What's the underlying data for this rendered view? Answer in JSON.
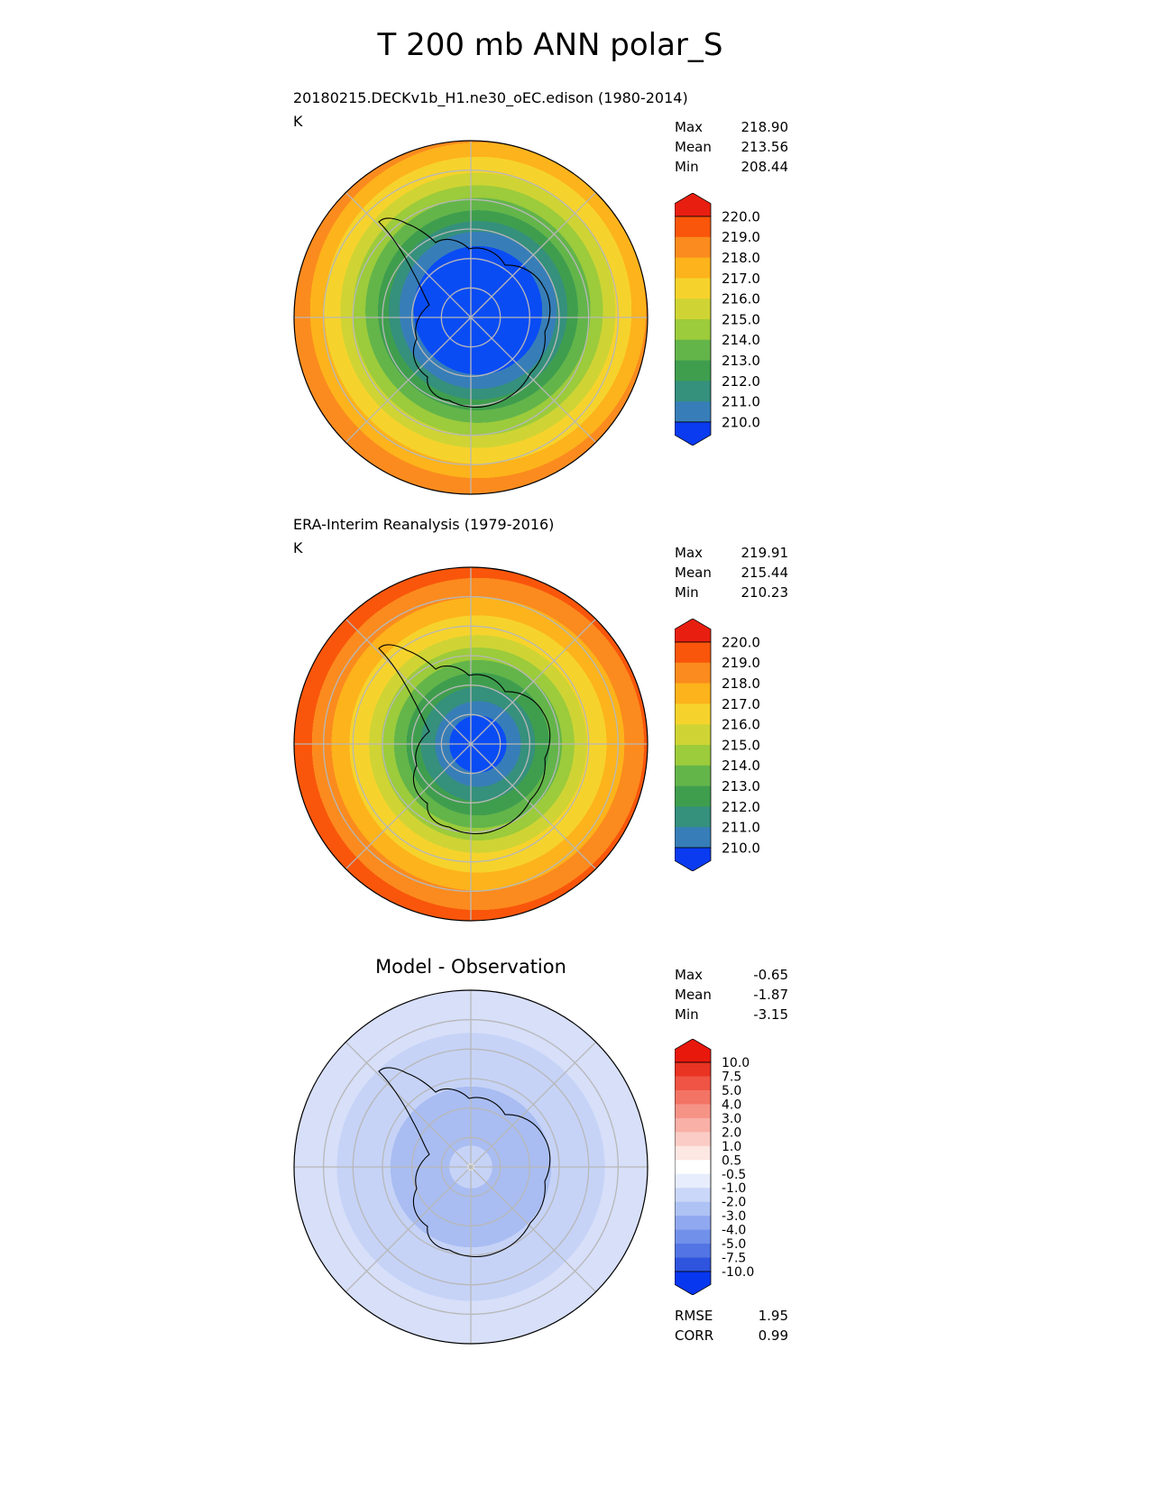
{
  "title": "T 200 mb ANN polar_S",
  "chart_data": {
    "type": "heatmap",
    "projection": "south-polar contour maps",
    "charts": [
      {
        "name": "model-panel",
        "subtitle": "20180215.DECKv1b_H1.ne30_oEC.edison (1980-2014)",
        "units": "K",
        "stats": [
          {
            "label": "Max",
            "value": "218.90"
          },
          {
            "label": "Mean",
            "value": "213.56"
          },
          {
            "label": "Min",
            "value": "208.44"
          }
        ],
        "colorbar": {
          "levels": [
            "220.0",
            "219.0",
            "218.0",
            "217.0",
            "216.0",
            "215.0",
            "214.0",
            "213.0",
            "212.0",
            "211.0",
            "210.0"
          ],
          "segment_colors": [
            "#f9560b",
            "#fb8b1e",
            "#fdb31b",
            "#f6d32c",
            "#cfd434",
            "#9ccb3b",
            "#63b54a",
            "#3f9e4e",
            "#35907c",
            "#377eb8"
          ],
          "cap_top_color": "#e81f10",
          "cap_bottom_color": "#0a3bf0"
        },
        "map": {
          "gradient_center": {
            "cx": 0.52,
            "cy": 0.48
          },
          "rings": [
            {
              "frac": 0.36,
              "color": "#0a4cf4"
            },
            {
              "frac": 0.44,
              "color": "#377eb8"
            },
            {
              "frac": 0.5,
              "color": "#35907c"
            },
            {
              "frac": 0.56,
              "color": "#3f9e4e"
            },
            {
              "frac": 0.63,
              "color": "#63b54a"
            },
            {
              "frac": 0.7,
              "color": "#9ccb3b"
            },
            {
              "frac": 0.77,
              "color": "#cfd434"
            },
            {
              "frac": 0.86,
              "color": "#f6d32c"
            },
            {
              "frac": 0.94,
              "color": "#fdb31b"
            },
            {
              "frac": 1.0,
              "color": "#fb8b1e"
            }
          ]
        }
      },
      {
        "name": "obs-panel",
        "subtitle": "ERA-Interim Reanalysis (1979-2016)",
        "units": "K",
        "stats": [
          {
            "label": "Max",
            "value": "219.91"
          },
          {
            "label": "Mean",
            "value": "215.44"
          },
          {
            "label": "Min",
            "value": "210.23"
          }
        ],
        "colorbar": {
          "levels": [
            "220.0",
            "219.0",
            "218.0",
            "217.0",
            "216.0",
            "215.0",
            "214.0",
            "213.0",
            "212.0",
            "211.0",
            "210.0"
          ],
          "segment_colors": [
            "#f9560b",
            "#fb8b1e",
            "#fdb31b",
            "#f6d32c",
            "#cfd434",
            "#9ccb3b",
            "#63b54a",
            "#3f9e4e",
            "#35907c",
            "#377eb8"
          ],
          "cap_top_color": "#e81f10",
          "cap_bottom_color": "#0a3bf0"
        },
        "map": {
          "gradient_center": {
            "cx": 0.52,
            "cy": 0.5
          },
          "rings": [
            {
              "frac": 0.16,
              "color": "#0a4cf4"
            },
            {
              "frac": 0.24,
              "color": "#377eb8"
            },
            {
              "frac": 0.32,
              "color": "#35907c"
            },
            {
              "frac": 0.4,
              "color": "#3f9e4e"
            },
            {
              "frac": 0.47,
              "color": "#63b54a"
            },
            {
              "frac": 0.54,
              "color": "#9ccb3b"
            },
            {
              "frac": 0.61,
              "color": "#cfd434"
            },
            {
              "frac": 0.72,
              "color": "#f6d32c"
            },
            {
              "frac": 0.82,
              "color": "#fdb31b"
            },
            {
              "frac": 0.93,
              "color": "#fb8b1e"
            },
            {
              "frac": 1.0,
              "color": "#f9560b"
            }
          ]
        }
      },
      {
        "name": "diff-panel",
        "title": "Model - Observation",
        "stats": [
          {
            "label": "Max",
            "value": "-0.65"
          },
          {
            "label": "Mean",
            "value": "-1.87"
          },
          {
            "label": "Min",
            "value": "-3.15"
          }
        ],
        "footer_stats": [
          {
            "label": "RMSE",
            "value": "1.95"
          },
          {
            "label": "CORR",
            "value": "0.99"
          }
        ],
        "colorbar": {
          "levels": [
            "10.0",
            "7.5",
            "5.0",
            "4.0",
            "3.0",
            "2.0",
            "1.0",
            "0.5",
            "-0.5",
            "-1.0",
            "-2.0",
            "-3.0",
            "-4.0",
            "-5.0",
            "-7.5",
            "-10.0"
          ],
          "segment_colors": [
            "#e93323",
            "#ef5444",
            "#f37464",
            "#f69387",
            "#f9b0a7",
            "#fbccc5",
            "#fde7e3",
            "#ffffff",
            "#e7edfc",
            "#cbd7f8",
            "#aec2f4",
            "#8fa8ef",
            "#7190ea",
            "#5274e4",
            "#2f54dd"
          ],
          "cap_top_color": "#e8180d",
          "cap_bottom_color": "#0837f0"
        },
        "map": {
          "gradient_center": {
            "cx": 0.5,
            "cy": 0.5
          },
          "rings": [
            {
              "frac": 0.02,
              "color": "#ffffff"
            },
            {
              "frac": 0.12,
              "color": "#c6d3f7"
            },
            {
              "frac": 0.45,
              "color": "#a9bdf2"
            },
            {
              "frac": 0.75,
              "color": "#c6d3f7"
            },
            {
              "frac": 1.0,
              "color": "#d7dff9"
            }
          ]
        }
      }
    ]
  }
}
